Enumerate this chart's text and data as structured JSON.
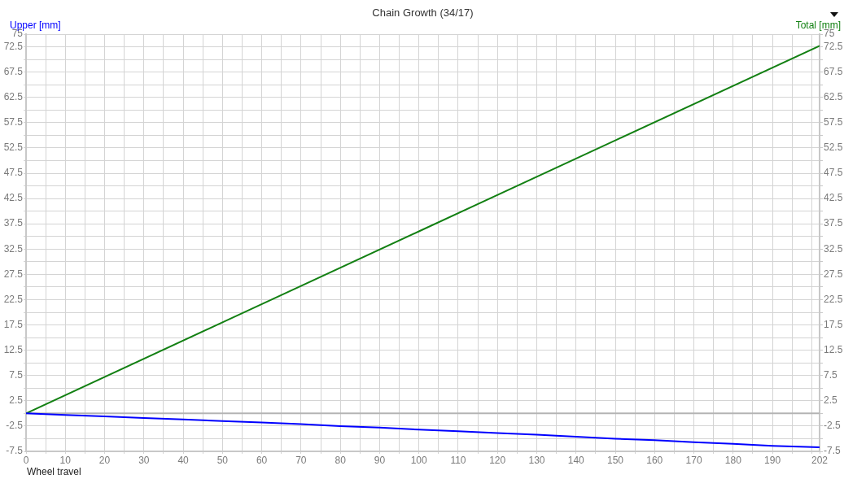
{
  "chart_data": {
    "type": "line",
    "title": "Chain Growth (34/17)",
    "xlabel": "Wheel travel",
    "ylabel": "Upper [mm]",
    "y2label": "Total [mm]",
    "series": [
      {
        "color": "#0000ff",
        "axis": "y",
        "x": [
          0,
          10,
          20,
          30,
          40,
          50,
          60,
          70,
          80,
          90,
          100,
          110,
          120,
          130,
          140,
          150,
          160,
          170,
          180,
          190,
          202
        ],
        "values": [
          0,
          -0.3,
          -0.6,
          -0.9,
          -1.2,
          -1.5,
          -1.8,
          -2.1,
          -2.5,
          -2.8,
          -3.2,
          -3.5,
          -3.9,
          -4.2,
          -4.6,
          -5.0,
          -5.3,
          -5.7,
          -6.0,
          -6.4,
          -6.7
        ]
      },
      {
        "color": "#138013",
        "axis": "y2",
        "x": [
          0,
          50,
          100,
          150,
          202
        ],
        "values": [
          0,
          18,
          36,
          54,
          72.7
        ]
      }
    ],
    "xlim": [
      0,
      202
    ],
    "xticks": [
      0,
      {
        "value": 5,
        "label": null
      },
      10,
      {
        "value": 15,
        "label": null
      },
      20,
      {
        "value": 25,
        "label": null
      },
      30,
      {
        "value": 35,
        "label": null
      },
      40,
      {
        "value": 45,
        "label": null
      },
      50,
      {
        "value": 55,
        "label": null
      },
      60,
      {
        "value": 65,
        "label": null
      },
      70,
      {
        "value": 75,
        "label": null
      },
      80,
      {
        "value": 85,
        "label": null
      },
      90,
      {
        "value": 95,
        "label": null
      },
      100,
      {
        "value": 105,
        "label": null
      },
      110,
      {
        "value": 115,
        "label": null
      },
      120,
      {
        "value": 125,
        "label": null
      },
      130,
      {
        "value": 135,
        "label": null
      },
      140,
      {
        "value": 145,
        "label": null
      },
      150,
      {
        "value": 155,
        "label": null
      },
      160,
      {
        "value": 165,
        "label": null
      },
      170,
      {
        "value": 175,
        "label": null
      },
      180,
      {
        "value": 185,
        "label": null
      },
      190,
      {
        "value": 195,
        "label": null
      },
      {
        "value": 200,
        "label": null
      },
      202
    ],
    "ylim": [
      -7.5,
      75
    ],
    "yticks": [
      -7.5,
      {
        "value": -5,
        "label": null
      },
      -2.5,
      {
        "value": 0,
        "label": null
      },
      2.5,
      {
        "value": 5,
        "label": null
      },
      7.5,
      {
        "value": 10,
        "label": null
      },
      12.5,
      {
        "value": 15,
        "label": null
      },
      17.5,
      {
        "value": 20,
        "label": null
      },
      22.5,
      {
        "value": 25,
        "label": null
      },
      27.5,
      {
        "value": 30,
        "label": null
      },
      32.5,
      {
        "value": 35,
        "label": null
      },
      37.5,
      {
        "value": 40,
        "label": null
      },
      42.5,
      {
        "value": 45,
        "label": null
      },
      47.5,
      {
        "value": 50,
        "label": null
      },
      52.5,
      {
        "value": 55,
        "label": null
      },
      57.5,
      {
        "value": 60,
        "label": null
      },
      62.5,
      {
        "value": 65,
        "label": null
      },
      67.5,
      {
        "value": 70,
        "label": null
      },
      72.5,
      75
    ],
    "y2lim": [
      -7.5,
      75
    ],
    "y2ticks": [
      -7.5,
      {
        "value": -5,
        "label": null
      },
      -2.5,
      {
        "value": 0,
        "label": null
      },
      2.5,
      {
        "value": 5,
        "label": null
      },
      7.5,
      {
        "value": 10,
        "label": null
      },
      12.5,
      {
        "value": 15,
        "label": null
      },
      17.5,
      {
        "value": 20,
        "label": null
      },
      22.5,
      {
        "value": 25,
        "label": null
      },
      27.5,
      {
        "value": 30,
        "label": null
      },
      32.5,
      {
        "value": 35,
        "label": null
      },
      37.5,
      {
        "value": 40,
        "label": null
      },
      42.5,
      {
        "value": 45,
        "label": null
      },
      47.5,
      {
        "value": 50,
        "label": null
      },
      52.5,
      {
        "value": 55,
        "label": null
      },
      57.5,
      {
        "value": 60,
        "label": null
      },
      62.5,
      {
        "value": 65,
        "label": null
      },
      67.5,
      {
        "value": 70,
        "label": null
      },
      72.5,
      75
    ],
    "ref_lines": [
      {
        "axis": "y",
        "value": 0,
        "color": "#b4b4b4"
      }
    ],
    "grid": true,
    "marker": "none"
  }
}
